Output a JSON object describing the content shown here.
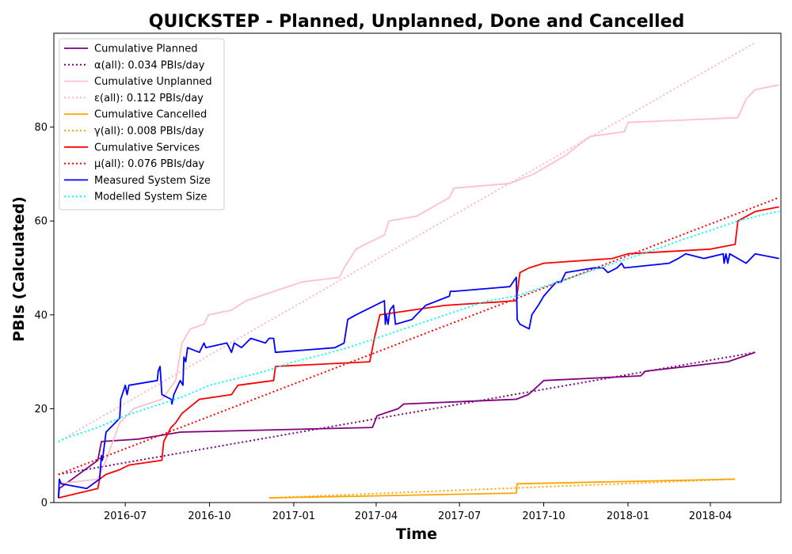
{
  "chart_data": {
    "type": "line",
    "title": "QUICKSTEP - Planned, Unplanned, Done  and Cancelled",
    "xlabel": "Time",
    "ylabel": "PBIs (Calculated)",
    "xlim": [
      "2016-04-14",
      "2018-06-17"
    ],
    "ylim": [
      0,
      100
    ],
    "x_ticks": [
      "2016-07",
      "2016-10",
      "2017-01",
      "2017-04",
      "2017-07",
      "2017-10",
      "2018-01",
      "2018-04"
    ],
    "y_ticks": [
      0,
      20,
      40,
      60,
      80
    ],
    "grid": false,
    "legend_position": "top-left",
    "series": [
      {
        "name": "Cumulative Planned",
        "color": "#800080",
        "style": "solid",
        "points": [
          [
            "2016-04-19",
            1
          ],
          [
            "2016-04-20",
            3
          ],
          [
            "2016-06-01",
            9
          ],
          [
            "2016-06-05",
            13
          ],
          [
            "2016-07-15",
            13.5
          ],
          [
            "2016-08-30",
            15
          ],
          [
            "2017-03-28",
            16
          ],
          [
            "2017-04-02",
            18.5
          ],
          [
            "2017-04-25",
            20
          ],
          [
            "2017-05-01",
            21
          ],
          [
            "2017-09-01",
            22
          ],
          [
            "2017-09-14",
            23
          ],
          [
            "2017-09-20",
            24
          ],
          [
            "2017-10-01",
            26
          ],
          [
            "2018-01-15",
            27
          ],
          [
            "2018-01-20",
            28
          ],
          [
            "2018-04-20",
            30
          ],
          [
            "2018-05-20",
            32
          ]
        ]
      },
      {
        "name": "α(all): 0.034 PBIs/day",
        "color": "#800080",
        "style": "dotted",
        "points": [
          [
            "2016-04-19",
            6
          ],
          [
            "2018-05-20",
            32
          ]
        ]
      },
      {
        "name": "Cumulative Unplanned",
        "color": "#ffc0cb",
        "style": "solid",
        "points": [
          [
            "2016-04-19",
            4
          ],
          [
            "2016-06-01",
            5
          ],
          [
            "2016-06-10",
            9
          ],
          [
            "2016-06-25",
            17
          ],
          [
            "2016-07-10",
            20
          ],
          [
            "2016-08-10",
            22
          ],
          [
            "2016-08-25",
            26
          ],
          [
            "2016-09-01",
            34
          ],
          [
            "2016-09-10",
            37
          ],
          [
            "2016-09-25",
            38
          ],
          [
            "2016-09-30",
            40
          ],
          [
            "2016-10-25",
            41
          ],
          [
            "2016-11-10",
            43
          ],
          [
            "2017-01-10",
            47
          ],
          [
            "2017-02-20",
            48
          ],
          [
            "2017-02-25",
            50
          ],
          [
            "2017-03-10",
            54
          ],
          [
            "2017-03-20",
            55
          ],
          [
            "2017-04-10",
            57
          ],
          [
            "2017-04-15",
            60
          ],
          [
            "2017-05-15",
            61
          ],
          [
            "2017-06-20",
            65
          ],
          [
            "2017-06-25",
            67
          ],
          [
            "2017-08-25",
            68
          ],
          [
            "2017-09-20",
            70
          ],
          [
            "2017-10-25",
            74
          ],
          [
            "2017-11-20",
            78
          ],
          [
            "2017-12-28",
            79
          ],
          [
            "2018-01-01",
            81
          ],
          [
            "2018-05-01",
            82
          ],
          [
            "2018-05-10",
            86
          ],
          [
            "2018-05-20",
            88
          ],
          [
            "2018-06-15",
            89
          ]
        ]
      },
      {
        "name": "ε(all): 0.112 PBIs/day",
        "color": "#ffb6c1",
        "style": "dotted",
        "points": [
          [
            "2016-04-19",
            13
          ],
          [
            "2018-05-20",
            98
          ]
        ]
      },
      {
        "name": "Cumulative Cancelled",
        "color": "#ffa500",
        "style": "solid",
        "points": [
          [
            "2016-12-05",
            1
          ],
          [
            "2017-09-01",
            2
          ],
          [
            "2017-09-02",
            4
          ],
          [
            "2018-04-28",
            5
          ]
        ]
      },
      {
        "name": "γ(all): 0.008 PBIs/day",
        "color": "#ffa500",
        "style": "dotted",
        "points": [
          [
            "2016-12-05",
            1
          ],
          [
            "2018-04-28",
            5
          ]
        ]
      },
      {
        "name": "Cumulative Services",
        "color": "#ff0000",
        "style": "solid",
        "points": [
          [
            "2016-04-19",
            1
          ],
          [
            "2016-06-01",
            3
          ],
          [
            "2016-06-03",
            5
          ],
          [
            "2016-06-10",
            6
          ],
          [
            "2016-06-25",
            7
          ],
          [
            "2016-07-05",
            8
          ],
          [
            "2016-08-10",
            9
          ],
          [
            "2016-08-12",
            13
          ],
          [
            "2016-08-20",
            16
          ],
          [
            "2016-08-25",
            17
          ],
          [
            "2016-09-01",
            19
          ],
          [
            "2016-09-20",
            22
          ],
          [
            "2016-10-25",
            23
          ],
          [
            "2016-11-01",
            25
          ],
          [
            "2016-12-10",
            26
          ],
          [
            "2016-12-12",
            29
          ],
          [
            "2017-03-25",
            30
          ],
          [
            "2017-03-30",
            35
          ],
          [
            "2017-04-05",
            40
          ],
          [
            "2017-05-10",
            41
          ],
          [
            "2017-06-15",
            42
          ],
          [
            "2017-09-01",
            43
          ],
          [
            "2017-09-05",
            49
          ],
          [
            "2017-09-15",
            50
          ],
          [
            "2017-10-01",
            51
          ],
          [
            "2017-12-15",
            52
          ],
          [
            "2018-01-01",
            53
          ],
          [
            "2018-04-01",
            54
          ],
          [
            "2018-04-28",
            55
          ],
          [
            "2018-05-01",
            60
          ],
          [
            "2018-05-20",
            62
          ],
          [
            "2018-06-15",
            63
          ]
        ]
      },
      {
        "name": "μ(all): 0.076 PBIs/day",
        "color": "#ff0000",
        "style": "dotted",
        "points": [
          [
            "2016-04-19",
            6
          ],
          [
            "2018-06-15",
            65
          ]
        ]
      },
      {
        "name": "Measured System Size",
        "color": "#0000ff",
        "style": "solid",
        "points": [
          [
            "2016-04-19",
            1
          ],
          [
            "2016-04-20",
            5
          ],
          [
            "2016-04-22",
            4
          ],
          [
            "2016-05-20",
            3
          ],
          [
            "2016-06-03",
            5
          ],
          [
            "2016-06-05",
            10
          ],
          [
            "2016-06-06",
            9
          ],
          [
            "2016-06-10",
            15
          ],
          [
            "2016-06-20",
            17
          ],
          [
            "2016-06-25",
            18
          ],
          [
            "2016-06-26",
            22
          ],
          [
            "2016-07-01",
            25
          ],
          [
            "2016-07-03",
            23
          ],
          [
            "2016-07-05",
            25
          ],
          [
            "2016-08-05",
            26
          ],
          [
            "2016-08-06",
            28
          ],
          [
            "2016-08-08",
            29
          ],
          [
            "2016-08-10",
            23
          ],
          [
            "2016-08-20",
            22
          ],
          [
            "2016-08-21",
            21
          ],
          [
            "2016-08-23",
            23
          ],
          [
            "2016-08-30",
            26
          ],
          [
            "2016-09-02",
            25
          ],
          [
            "2016-09-03",
            31
          ],
          [
            "2016-09-05",
            30
          ],
          [
            "2016-09-07",
            33
          ],
          [
            "2016-09-20",
            32
          ],
          [
            "2016-09-25",
            34
          ],
          [
            "2016-09-27",
            33
          ],
          [
            "2016-10-20",
            34
          ],
          [
            "2016-10-25",
            32
          ],
          [
            "2016-10-28",
            34
          ],
          [
            "2016-11-05",
            33
          ],
          [
            "2016-11-15",
            35
          ],
          [
            "2016-12-01",
            34
          ],
          [
            "2016-12-05",
            35
          ],
          [
            "2016-12-10",
            35
          ],
          [
            "2016-12-12",
            32
          ],
          [
            "2017-02-15",
            33
          ],
          [
            "2017-02-25",
            34
          ],
          [
            "2017-03-01",
            39
          ],
          [
            "2017-03-10",
            40
          ],
          [
            "2017-04-10",
            43
          ],
          [
            "2017-04-11",
            38
          ],
          [
            "2017-04-12",
            40
          ],
          [
            "2017-04-14",
            38
          ],
          [
            "2017-04-16",
            41
          ],
          [
            "2017-04-20",
            42
          ],
          [
            "2017-04-22",
            38
          ],
          [
            "2017-05-10",
            39
          ],
          [
            "2017-05-15",
            40
          ],
          [
            "2017-05-20",
            41
          ],
          [
            "2017-05-25",
            42
          ],
          [
            "2017-06-20",
            44
          ],
          [
            "2017-06-21",
            45
          ],
          [
            "2017-06-25",
            45
          ],
          [
            "2017-08-25",
            46
          ],
          [
            "2017-09-01",
            48
          ],
          [
            "2017-09-02",
            39
          ],
          [
            "2017-09-05",
            38
          ],
          [
            "2017-09-15",
            37
          ],
          [
            "2017-09-18",
            40
          ],
          [
            "2017-09-25",
            42
          ],
          [
            "2017-10-01",
            44
          ],
          [
            "2017-10-10",
            46
          ],
          [
            "2017-10-15",
            47
          ],
          [
            "2017-10-20",
            47
          ],
          [
            "2017-10-25",
            49
          ],
          [
            "2017-11-25",
            50
          ],
          [
            "2017-12-05",
            50
          ],
          [
            "2017-12-10",
            49
          ],
          [
            "2017-12-20",
            50
          ],
          [
            "2017-12-25",
            51
          ],
          [
            "2017-12-28",
            50
          ],
          [
            "2018-02-15",
            51
          ],
          [
            "2018-02-25",
            52
          ],
          [
            "2018-03-05",
            53
          ],
          [
            "2018-03-25",
            52
          ],
          [
            "2018-04-15",
            53
          ],
          [
            "2018-04-16",
            51
          ],
          [
            "2018-04-18",
            53
          ],
          [
            "2018-04-20",
            51
          ],
          [
            "2018-04-22",
            53
          ],
          [
            "2018-05-10",
            51
          ],
          [
            "2018-05-20",
            53
          ],
          [
            "2018-06-15",
            52
          ]
        ]
      },
      {
        "name": "Modelled System Size",
        "color": "#00ffff",
        "style": "dotted",
        "points": [
          [
            "2016-04-19",
            13
          ],
          [
            "2016-05-01",
            14
          ],
          [
            "2016-06-01",
            16
          ],
          [
            "2016-07-01",
            18.5
          ],
          [
            "2016-08-01",
            20.5
          ],
          [
            "2016-09-01",
            22.5
          ],
          [
            "2016-10-01",
            25
          ],
          [
            "2016-11-01",
            26.5
          ],
          [
            "2016-12-01",
            28
          ],
          [
            "2017-01-01",
            30
          ],
          [
            "2017-02-01",
            31.5
          ],
          [
            "2017-03-01",
            33
          ],
          [
            "2017-04-01",
            35
          ],
          [
            "2017-05-01",
            37
          ],
          [
            "2017-06-01",
            39
          ],
          [
            "2017-07-01",
            41
          ],
          [
            "2017-08-01",
            43
          ],
          [
            "2017-09-01",
            44
          ],
          [
            "2017-10-01",
            46
          ],
          [
            "2017-11-01",
            48
          ],
          [
            "2017-12-01",
            50
          ],
          [
            "2018-01-01",
            52
          ],
          [
            "2018-02-01",
            54
          ],
          [
            "2018-03-01",
            56
          ],
          [
            "2018-04-01",
            58
          ],
          [
            "2018-05-01",
            60
          ],
          [
            "2018-06-01",
            61.5
          ],
          [
            "2018-06-15",
            62
          ]
        ]
      }
    ]
  }
}
